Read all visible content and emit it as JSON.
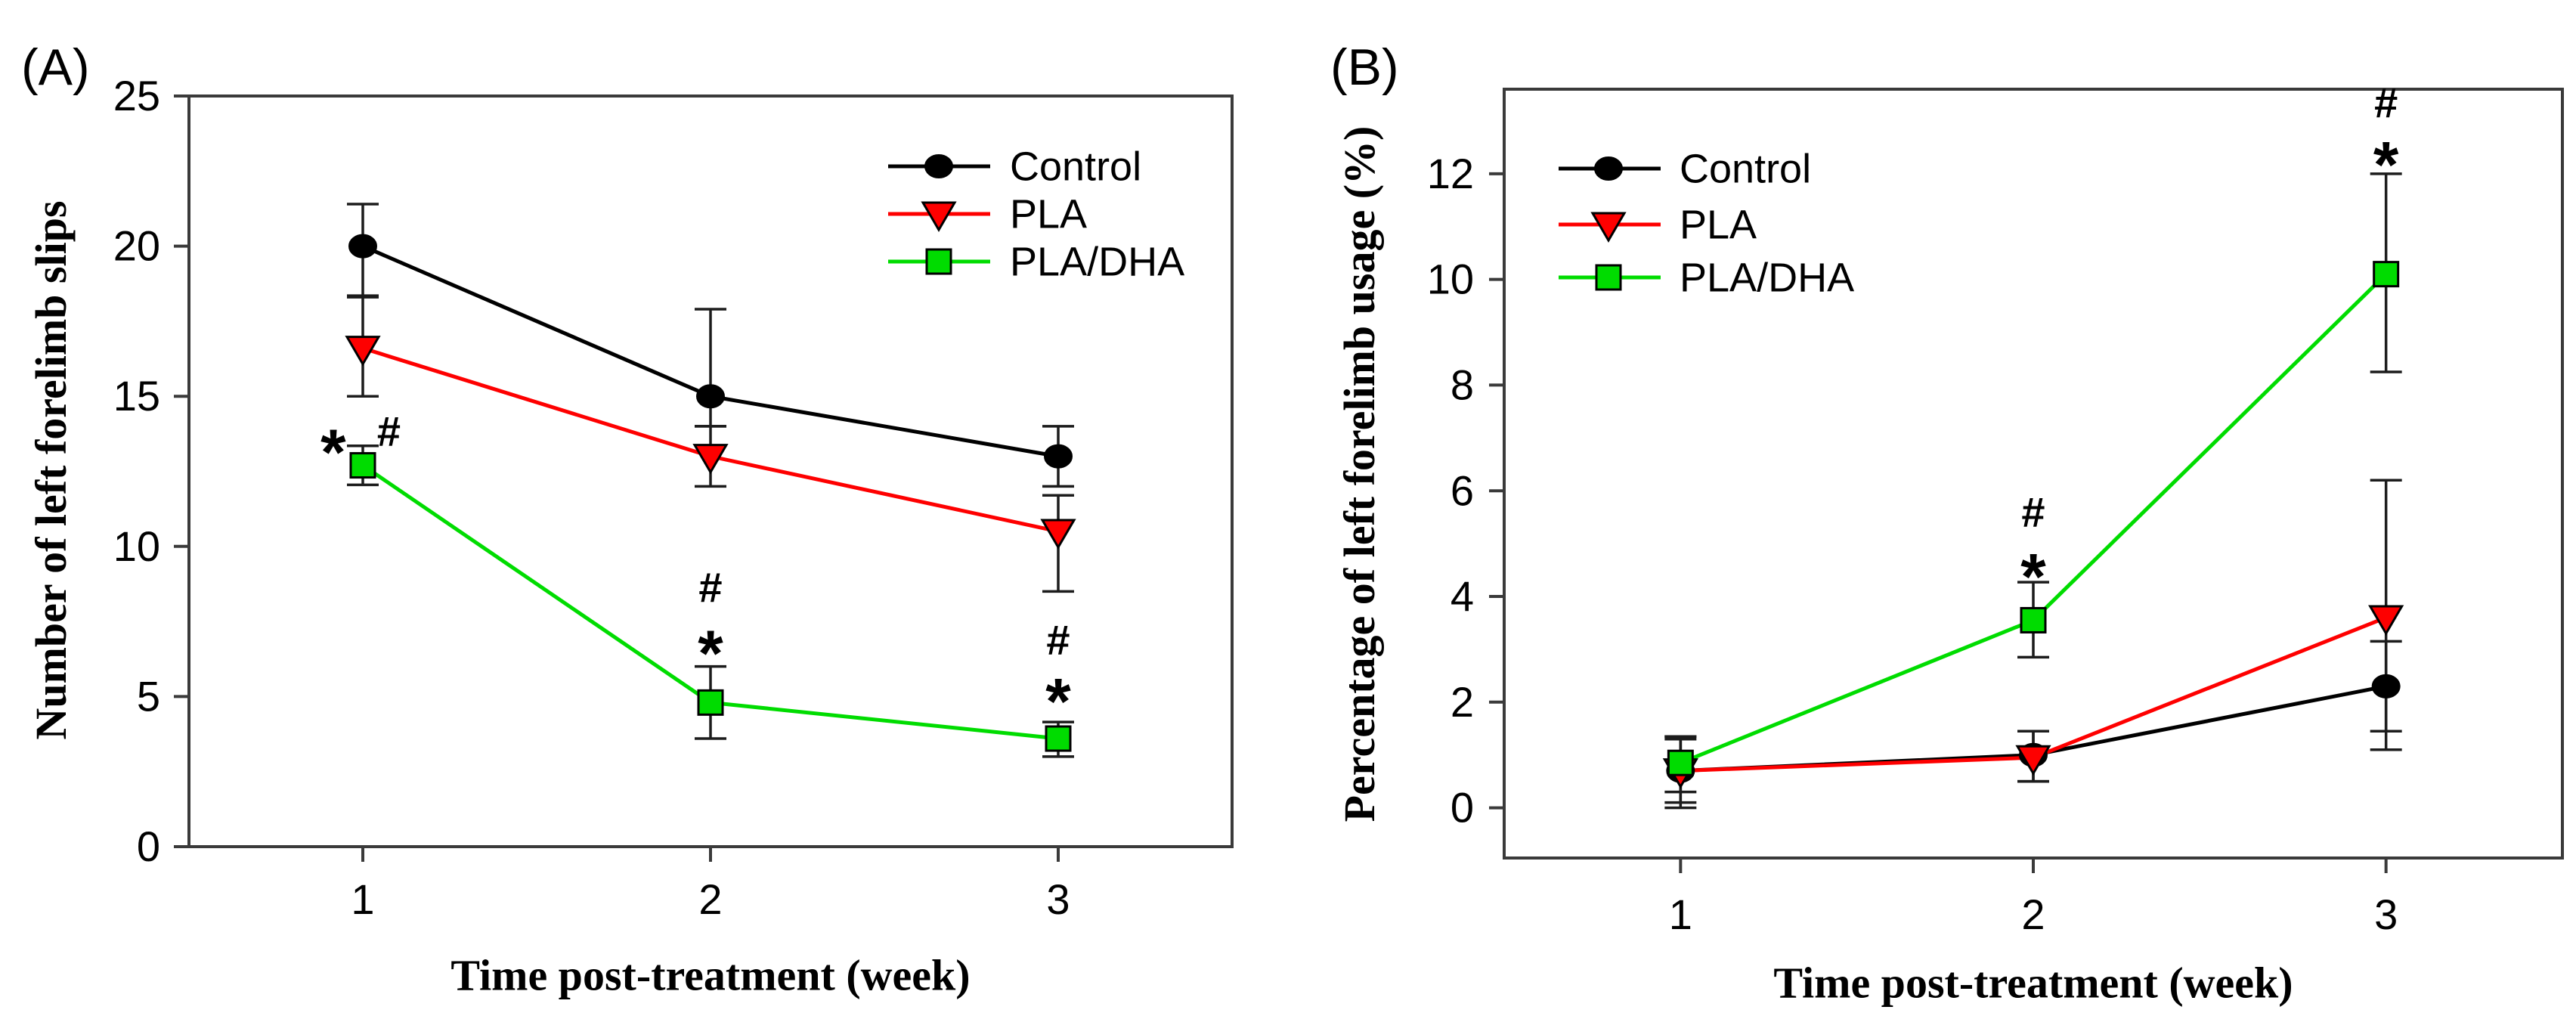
{
  "style": {
    "background": "#ffffff",
    "axis_color": "#3a3a3a",
    "error_bar_color": "#1c1c1c",
    "text_color": "#000000"
  },
  "chart_data": [
    {
      "type": "line",
      "panel_label": "(A)",
      "xlabel": "Time post-treatment (week)",
      "ylabel": "Number of left forelimb slips",
      "x": [
        1,
        2,
        3
      ],
      "xtick_labels": [
        "1",
        "2",
        "3"
      ],
      "yticks": [
        0,
        5,
        10,
        15,
        20,
        25
      ],
      "ylim": [
        0,
        25
      ],
      "xlim": [
        0.5,
        3.5
      ],
      "grid": false,
      "legend_position": "top-right",
      "series": [
        {
          "name": "Control",
          "color": "#000000",
          "marker": "circle",
          "values": [
            20.0,
            15.0,
            13.0
          ],
          "err_up": [
            1.4,
            2.9,
            1.0
          ],
          "err_down": [
            1.65,
            1.0,
            1.0
          ]
        },
        {
          "name": "PLA",
          "color": "#fe0000",
          "marker": "triangle-down",
          "values": [
            16.6,
            13.0,
            10.5
          ],
          "err_up": [
            1.7,
            1.0,
            1.2
          ],
          "err_down": [
            1.6,
            1.0,
            2.0
          ]
        },
        {
          "name": "PLA/DHA",
          "color": "#00dc00",
          "marker": "square",
          "values": [
            12.7,
            4.8,
            3.6
          ],
          "err_up": [
            0.65,
            1.2,
            0.55
          ],
          "err_down": [
            0.65,
            1.2,
            0.6
          ]
        }
      ],
      "annotations": [
        {
          "text": "*",
          "x": 0.915,
          "y": 13.8
        },
        {
          "text": "#",
          "x": 1.075,
          "y": 13.85
        },
        {
          "text": "#",
          "x": 2,
          "y": 8.65
        },
        {
          "text": "*",
          "x": 2,
          "y": 7.1
        },
        {
          "text": "#",
          "x": 3,
          "y": 6.9
        },
        {
          "text": "*",
          "x": 3,
          "y": 5.5
        }
      ]
    },
    {
      "type": "line",
      "panel_label": "(B)",
      "xlabel": "Time post-treatment (week)",
      "ylabel": "Percentage of left forelimb usage (%)",
      "x": [
        1,
        2,
        3
      ],
      "xtick_labels": [
        "1",
        "2",
        "3"
      ],
      "yticks": [
        0,
        2,
        4,
        6,
        8,
        10,
        12
      ],
      "ylim": [
        -0.95,
        13.6
      ],
      "xlim": [
        0.5,
        3.5
      ],
      "grid": false,
      "legend_position": "top-left",
      "series": [
        {
          "name": "Control",
          "color": "#000000",
          "marker": "circle",
          "values": [
            0.7,
            1.0,
            2.3
          ],
          "err_up": [
            0.65,
            0.45,
            0.85
          ],
          "err_down": [
            0.7,
            0.5,
            0.85
          ]
        },
        {
          "name": "PLA",
          "color": "#fe0000",
          "marker": "triangle-down",
          "values": [
            0.7,
            0.95,
            3.6
          ],
          "err_up": [
            0.6,
            0.5,
            2.6
          ],
          "err_down": [
            0.6,
            0.45,
            2.5
          ]
        },
        {
          "name": "PLA/DHA",
          "color": "#00dc00",
          "marker": "square",
          "values": [
            0.85,
            3.55,
            10.1
          ],
          "err_up": [
            0.5,
            0.72,
            1.9
          ],
          "err_down": [
            0.55,
            0.7,
            1.85
          ]
        }
      ],
      "annotations": [
        {
          "text": "#",
          "x": 2,
          "y": 5.6
        },
        {
          "text": "*",
          "x": 2,
          "y": 4.75
        },
        {
          "text": "#",
          "x": 3,
          "y": 13.35
        },
        {
          "text": "*",
          "x": 3,
          "y": 12.55
        }
      ]
    }
  ]
}
